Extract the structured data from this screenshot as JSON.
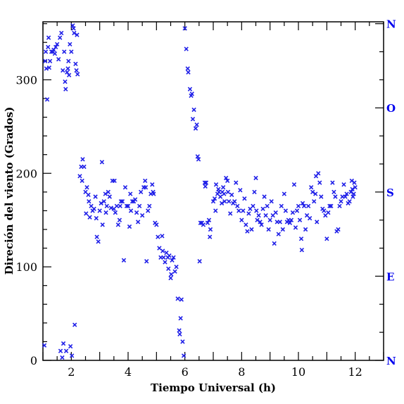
{
  "chart_data": {
    "type": "scatter",
    "xlabel": "Tiempo Universal (h)",
    "ylabel": "Direción del viento (Grados)",
    "xlim": [
      1,
      13
    ],
    "ylim": [
      0,
      362
    ],
    "x_ticks": [
      2,
      4,
      6,
      8,
      10,
      12
    ],
    "x_tick_labels": [
      "2",
      "4",
      "6",
      "8",
      "10",
      "12"
    ],
    "y_ticks": [
      0,
      100,
      200,
      300
    ],
    "y_tick_labels": [
      "0",
      "100",
      "200",
      "300"
    ],
    "right_axis_labels": [
      {
        "value": 0,
        "label": "N"
      },
      {
        "value": 90,
        "label": "E"
      },
      {
        "value": 180,
        "label": "S"
      },
      {
        "value": 270,
        "label": "O"
      },
      {
        "value": 360,
        "label": "N"
      }
    ],
    "marker": "x",
    "marker_color": "#1f1fe8",
    "right_label_color": "#0000ee",
    "grid": false,
    "series": [
      {
        "points": [
          [
            1.05,
            16
          ],
          [
            1.08,
            320
          ],
          [
            1.1,
            330
          ],
          [
            1.12,
            312
          ],
          [
            1.15,
            279
          ],
          [
            1.18,
            335
          ],
          [
            1.2,
            345
          ],
          [
            1.22,
            313
          ],
          [
            1.25,
            320
          ],
          [
            1.3,
            330
          ],
          [
            1.35,
            330
          ],
          [
            1.38,
            332
          ],
          [
            1.42,
            328
          ],
          [
            1.45,
            335
          ],
          [
            1.5,
            338
          ],
          [
            1.55,
            322
          ],
          [
            1.6,
            345
          ],
          [
            1.62,
            10
          ],
          [
            1.65,
            350
          ],
          [
            1.68,
            3
          ],
          [
            1.7,
            310
          ],
          [
            1.72,
            18
          ],
          [
            1.75,
            330
          ],
          [
            1.78,
            298
          ],
          [
            1.8,
            290
          ],
          [
            1.82,
            10
          ],
          [
            1.85,
            308
          ],
          [
            1.88,
            312
          ],
          [
            1.9,
            320
          ],
          [
            1.92,
            305
          ],
          [
            1.95,
            338
          ],
          [
            1.97,
            15
          ],
          [
            2.0,
            330
          ],
          [
            2.02,
            5
          ],
          [
            2.05,
            358
          ],
          [
            2.08,
            355
          ],
          [
            2.1,
            350
          ],
          [
            2.12,
            38
          ],
          [
            2.15,
            317
          ],
          [
            2.18,
            310
          ],
          [
            2.2,
            348
          ],
          [
            2.22,
            306
          ],
          [
            2.3,
            197
          ],
          [
            2.35,
            207
          ],
          [
            2.38,
            192
          ],
          [
            2.4,
            215
          ],
          [
            2.45,
            207
          ],
          [
            2.5,
            180
          ],
          [
            2.52,
            157
          ],
          [
            2.55,
            185
          ],
          [
            2.6,
            177
          ],
          [
            2.62,
            170
          ],
          [
            2.65,
            153
          ],
          [
            2.7,
            165
          ],
          [
            2.75,
            160
          ],
          [
            2.8,
            162
          ],
          [
            2.85,
            175
          ],
          [
            2.88,
            152
          ],
          [
            2.9,
            132
          ],
          [
            2.95,
            127
          ],
          [
            3.0,
            160
          ],
          [
            3.05,
            168
          ],
          [
            3.08,
            212
          ],
          [
            3.1,
            145
          ],
          [
            3.15,
            170
          ],
          [
            3.2,
            178
          ],
          [
            3.22,
            158
          ],
          [
            3.25,
            165
          ],
          [
            3.3,
            180
          ],
          [
            3.35,
            175
          ],
          [
            3.4,
            163
          ],
          [
            3.45,
            192
          ],
          [
            3.5,
            162
          ],
          [
            3.52,
            192
          ],
          [
            3.55,
            158
          ],
          [
            3.6,
            165
          ],
          [
            3.65,
            145
          ],
          [
            3.7,
            150
          ],
          [
            3.72,
            165
          ],
          [
            3.75,
            170
          ],
          [
            3.8,
            170
          ],
          [
            3.85,
            107
          ],
          [
            3.9,
            185
          ],
          [
            3.95,
            165
          ],
          [
            4.0,
            165
          ],
          [
            4.05,
            143
          ],
          [
            4.08,
            178
          ],
          [
            4.1,
            160
          ],
          [
            4.15,
            170
          ],
          [
            4.2,
            170
          ],
          [
            4.25,
            172
          ],
          [
            4.3,
            158
          ],
          [
            4.35,
            148
          ],
          [
            4.4,
            165
          ],
          [
            4.45,
            180
          ],
          [
            4.5,
            155
          ],
          [
            4.55,
            185
          ],
          [
            4.6,
            192
          ],
          [
            4.62,
            185
          ],
          [
            4.65,
            106
          ],
          [
            4.7,
            160
          ],
          [
            4.75,
            165
          ],
          [
            4.8,
            178
          ],
          [
            4.85,
            188
          ],
          [
            4.88,
            180
          ],
          [
            4.9,
            178
          ],
          [
            4.95,
            147
          ],
          [
            5.0,
            145
          ],
          [
            5.05,
            132
          ],
          [
            5.1,
            120
          ],
          [
            5.15,
            110
          ],
          [
            5.2,
            133
          ],
          [
            5.22,
            117
          ],
          [
            5.25,
            110
          ],
          [
            5.3,
            105
          ],
          [
            5.35,
            115
          ],
          [
            5.4,
            110
          ],
          [
            5.42,
            98
          ],
          [
            5.45,
            112
          ],
          [
            5.5,
            88
          ],
          [
            5.52,
            92
          ],
          [
            5.55,
            107
          ],
          [
            5.6,
            110
          ],
          [
            5.65,
            95
          ],
          [
            5.7,
            100
          ],
          [
            5.75,
            66
          ],
          [
            5.8,
            32
          ],
          [
            5.82,
            28
          ],
          [
            5.85,
            45
          ],
          [
            5.88,
            65
          ],
          [
            5.92,
            20
          ],
          [
            5.96,
            5
          ],
          [
            6.0,
            355
          ],
          [
            6.05,
            333
          ],
          [
            6.1,
            312
          ],
          [
            6.12,
            308
          ],
          [
            6.18,
            290
          ],
          [
            6.22,
            283
          ],
          [
            6.25,
            285
          ],
          [
            6.28,
            258
          ],
          [
            6.32,
            268
          ],
          [
            6.38,
            248
          ],
          [
            6.42,
            252
          ],
          [
            6.45,
            218
          ],
          [
            6.48,
            215
          ],
          [
            6.52,
            106
          ],
          [
            6.55,
            147
          ],
          [
            6.6,
            147
          ],
          [
            6.65,
            145
          ],
          [
            6.7,
            190
          ],
          [
            6.72,
            186
          ],
          [
            6.75,
            190
          ],
          [
            6.8,
            147
          ],
          [
            6.85,
            150
          ],
          [
            6.88,
            132
          ],
          [
            6.9,
            140
          ],
          [
            7.0,
            170
          ],
          [
            7.05,
            173
          ],
          [
            7.08,
            160
          ],
          [
            7.1,
            188
          ],
          [
            7.15,
            178
          ],
          [
            7.18,
            183
          ],
          [
            7.2,
            180
          ],
          [
            7.25,
            175
          ],
          [
            7.3,
            168
          ],
          [
            7.32,
            180
          ],
          [
            7.35,
            185
          ],
          [
            7.38,
            178
          ],
          [
            7.4,
            170
          ],
          [
            7.45,
            195
          ],
          [
            7.5,
            192
          ],
          [
            7.52,
            180
          ],
          [
            7.55,
            170
          ],
          [
            7.6,
            157
          ],
          [
            7.65,
            177
          ],
          [
            7.7,
            168
          ],
          [
            7.75,
            170
          ],
          [
            7.8,
            190
          ],
          [
            7.85,
            165
          ],
          [
            7.9,
            160
          ],
          [
            7.95,
            182
          ],
          [
            8.0,
            150
          ],
          [
            8.05,
            160
          ],
          [
            8.1,
            173
          ],
          [
            8.15,
            145
          ],
          [
            8.2,
            138
          ],
          [
            8.25,
            157
          ],
          [
            8.3,
            162
          ],
          [
            8.35,
            140
          ],
          [
            8.4,
            165
          ],
          [
            8.45,
            180
          ],
          [
            8.5,
            195
          ],
          [
            8.52,
            160
          ],
          [
            8.55,
            150
          ],
          [
            8.6,
            155
          ],
          [
            8.65,
            148
          ],
          [
            8.7,
            145
          ],
          [
            8.75,
            162
          ],
          [
            8.8,
            175
          ],
          [
            8.85,
            155
          ],
          [
            8.9,
            165
          ],
          [
            8.95,
            140
          ],
          [
            9.0,
            150
          ],
          [
            9.05,
            170
          ],
          [
            9.1,
            155
          ],
          [
            9.15,
            125
          ],
          [
            9.2,
            158
          ],
          [
            9.25,
            148
          ],
          [
            9.3,
            135
          ],
          [
            9.35,
            148
          ],
          [
            9.4,
            165
          ],
          [
            9.45,
            140
          ],
          [
            9.5,
            178
          ],
          [
            9.55,
            160
          ],
          [
            9.6,
            148
          ],
          [
            9.65,
            150
          ],
          [
            9.7,
            147
          ],
          [
            9.75,
            150
          ],
          [
            9.8,
            158
          ],
          [
            9.85,
            188
          ],
          [
            9.9,
            142
          ],
          [
            9.95,
            160
          ],
          [
            10.0,
            165
          ],
          [
            10.05,
            150
          ],
          [
            10.1,
            130
          ],
          [
            10.12,
            118
          ],
          [
            10.15,
            168
          ],
          [
            10.2,
            165
          ],
          [
            10.25,
            140
          ],
          [
            10.3,
            155
          ],
          [
            10.35,
            165
          ],
          [
            10.4,
            152
          ],
          [
            10.45,
            185
          ],
          [
            10.5,
            180
          ],
          [
            10.55,
            170
          ],
          [
            10.6,
            178
          ],
          [
            10.62,
            197
          ],
          [
            10.65,
            148
          ],
          [
            10.7,
            200
          ],
          [
            10.75,
            190
          ],
          [
            10.8,
            175
          ],
          [
            10.85,
            162
          ],
          [
            10.9,
            160
          ],
          [
            10.95,
            155
          ],
          [
            11.0,
            130
          ],
          [
            11.05,
            158
          ],
          [
            11.1,
            165
          ],
          [
            11.15,
            165
          ],
          [
            11.2,
            190
          ],
          [
            11.25,
            180
          ],
          [
            11.3,
            175
          ],
          [
            11.35,
            138
          ],
          [
            11.4,
            140
          ],
          [
            11.45,
            165
          ],
          [
            11.5,
            170
          ],
          [
            11.55,
            175
          ],
          [
            11.6,
            188
          ],
          [
            11.65,
            175
          ],
          [
            11.7,
            178
          ],
          [
            11.75,
            168
          ],
          [
            11.8,
            170
          ],
          [
            11.85,
            180
          ],
          [
            11.88,
            192
          ],
          [
            11.9,
            183
          ],
          [
            11.92,
            175
          ],
          [
            11.95,
            178
          ],
          [
            11.97,
            190
          ],
          [
            12.0,
            185
          ]
        ]
      }
    ]
  }
}
